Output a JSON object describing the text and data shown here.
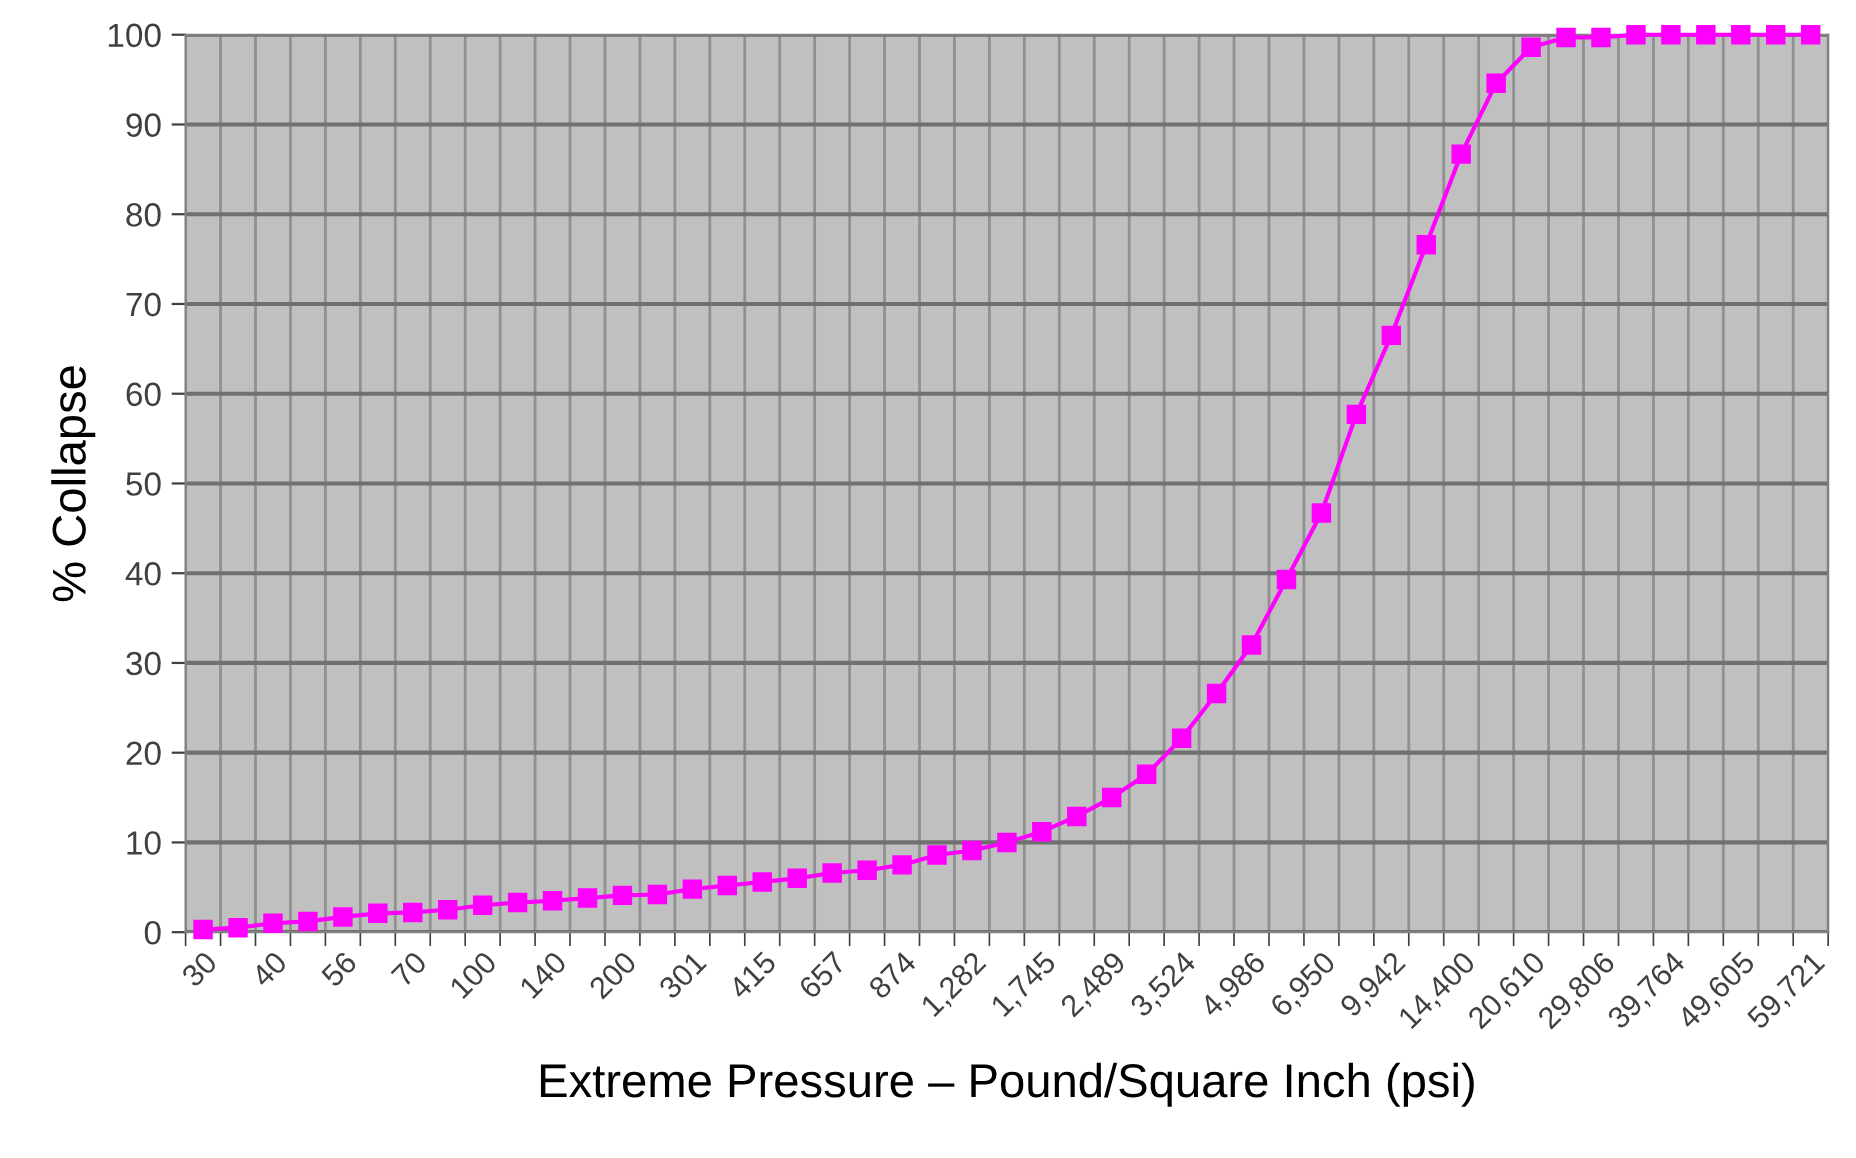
{
  "chart_data": {
    "type": "line",
    "xlabel": "Extreme Pressure – Pound/Square Inch (psi)",
    "ylabel": "% Collapse",
    "categories": [
      "30",
      null,
      "40",
      null,
      "56",
      null,
      "70",
      null,
      "100",
      null,
      "140",
      null,
      "200",
      null,
      "301",
      null,
      "415",
      null,
      "657",
      null,
      "874",
      null,
      "1,282",
      null,
      "1,745",
      null,
      "2,489",
      null,
      "3,524",
      null,
      "4,986",
      null,
      "6,950",
      null,
      "9,942",
      null,
      "14,400",
      null,
      "20,610",
      null,
      "29,806",
      null,
      "39,764",
      null,
      "49,605",
      null,
      "59,721"
    ],
    "series": [
      {
        "color": "#ff00ff",
        "values": [
          0.3,
          0.5,
          1.0,
          1.2,
          1.7,
          2.1,
          2.2,
          2.5,
          3.0,
          3.3,
          3.5,
          3.8,
          4.1,
          4.2,
          4.8,
          5.2,
          5.6,
          6.0,
          6.6,
          6.9,
          7.5,
          8.6,
          9.1,
          10.0,
          11.2,
          12.9,
          15.0,
          17.6,
          21.6,
          26.6,
          32.0,
          39.3,
          46.7,
          57.7,
          66.5,
          76.6,
          86.7,
          94.6,
          98.6,
          99.7,
          99.7,
          100,
          100,
          100,
          100,
          100,
          100
        ]
      }
    ],
    "ylim": [
      0,
      100
    ],
    "yticks": [
      0,
      10,
      20,
      30,
      40,
      50,
      60,
      70,
      80,
      90,
      100
    ],
    "grid": true,
    "marker": "square",
    "line_style": "solid",
    "legend": false
  }
}
